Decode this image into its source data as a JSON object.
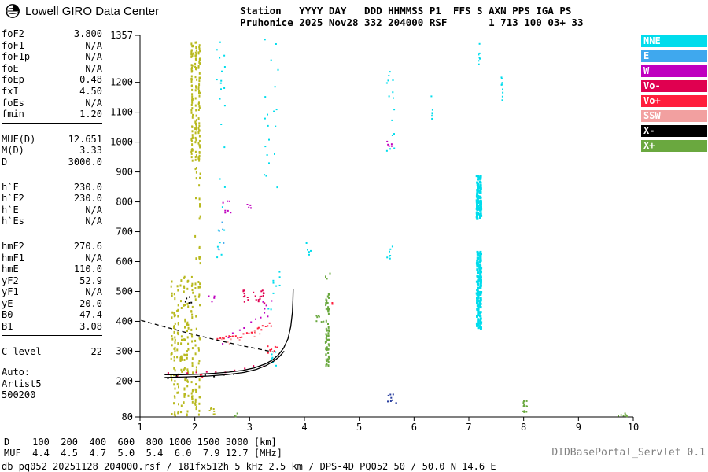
{
  "logo": {
    "text": "Lowell GIRO Data Center"
  },
  "header": {
    "line1": "Station   YYYY DAY   DDD HHMMSS P1  FFS S AXN PPS IGA PS",
    "line2": "Pruhonice 2025 Nov28 332 204000 RSF       1 713 100 03+ 33"
  },
  "params": {
    "groups": [
      {
        "rows": [
          [
            "foF2",
            "3.800"
          ],
          [
            "foF1",
            "N/A"
          ],
          [
            "foF1p",
            "N/A"
          ],
          [
            "foE",
            "N/A"
          ],
          [
            "foEp",
            "0.48"
          ],
          [
            "fxI",
            "4.50"
          ],
          [
            "foEs",
            "N/A"
          ],
          [
            "fmin",
            "1.20"
          ]
        ]
      },
      {
        "rows": [
          [
            "MUF(D)",
            "12.651"
          ],
          [
            "M(D)",
            "3.33"
          ],
          [
            "D",
            "3000.0"
          ]
        ]
      },
      {
        "rows": [
          [
            "h`F",
            "230.0"
          ],
          [
            "h`F2",
            "230.0"
          ],
          [
            "h`E",
            "N/A"
          ],
          [
            "h`Es",
            "N/A"
          ]
        ]
      },
      {
        "rows": [
          [
            "hmF2",
            "270.6"
          ],
          [
            "hmF1",
            "N/A"
          ],
          [
            "hmE",
            "110.0"
          ],
          [
            "yF2",
            "52.9"
          ],
          [
            "yF1",
            "N/A"
          ],
          [
            "yE",
            "20.0"
          ],
          [
            "B0",
            "47.4"
          ],
          [
            "B1",
            "3.08"
          ]
        ]
      },
      {
        "rows": [
          [
            "C-level",
            "22"
          ]
        ]
      }
    ],
    "auto_label": "Auto:",
    "auto_lines": [
      "Artist5",
      "500200"
    ]
  },
  "legend": [
    {
      "label": "NNE",
      "color": "#00dcec"
    },
    {
      "label": "E",
      "color": "#3fa8ee"
    },
    {
      "label": "W",
      "color": "#bf00bf"
    },
    {
      "label": "Vo-",
      "color": "#e00050"
    },
    {
      "label": "Vo+",
      "color": "#ff1e3c"
    },
    {
      "label": "SSW",
      "color": "#f2a0a0"
    },
    {
      "label": "X-",
      "color": "#000000"
    },
    {
      "label": "X+",
      "color": "#6aa83f"
    }
  ],
  "footer": {
    "d_row": "D    100  200  400  600  800 1000 1500 3000 [km]",
    "muf_row": "MUF  4.4  4.5  4.7  5.0  5.4  6.0  7.9 12.7 [MHz]",
    "servlet": "DIDBasePortal_Servlet 0.1",
    "db_info": "db pq052 20251128 204000.rsf / 181fx512h 5 kHz 2.5 km / DPS-4D PQ052 50 / 50.0 N 14.6 E"
  },
  "chart_data": {
    "type": "scatter",
    "xlabel": "[MHz]",
    "ylabel": "[km]",
    "xlim": [
      1,
      10
    ],
    "ylim": [
      80,
      1357
    ],
    "x_ticks": [
      1,
      2,
      3,
      4,
      5,
      6,
      7,
      8,
      9,
      10
    ],
    "y_ticks": [
      1357,
      1200,
      1100,
      1000,
      900,
      800,
      700,
      600,
      500,
      400,
      300,
      200,
      80
    ],
    "grid": false,
    "legend_position": "top-right",
    "colors": {
      "yellow": "#b8b91f",
      "nne": "#00dcec",
      "e": "#3fa8ee",
      "w": "#bf00bf",
      "vom": "#e00050",
      "vop": "#ff1e3c",
      "ssw": "#f2a0a0",
      "xm": "#000000",
      "xp": "#6aa83f",
      "navy": "#2a3f9f"
    },
    "clusters": [
      {
        "c": "yellow",
        "cols": [
          1.58,
          1.63,
          1.69,
          1.75,
          1.81,
          1.87,
          1.95,
          2.02,
          2.08
        ],
        "y": [
          80,
          555
        ],
        "n": 210,
        "h": 3
      },
      {
        "c": "yellow",
        "cols": [
          1.95,
          2.02,
          2.08
        ],
        "y": [
          935,
          1335
        ],
        "n": 150,
        "h": 3
      },
      {
        "c": "yellow",
        "cols": [
          2.02,
          2.09
        ],
        "y": [
          570,
          930
        ],
        "n": 22,
        "h": 3
      },
      {
        "c": "yellow",
        "rect": [
          2.27,
          2.36,
          80,
          112
        ],
        "n": 7
      },
      {
        "c": "nne",
        "cols": [
          7.16,
          7.21
        ],
        "y": [
          372,
          632
        ],
        "n": 140,
        "w": 3,
        "h": 3
      },
      {
        "c": "nne",
        "cols": [
          7.16,
          7.21
        ],
        "y": [
          742,
          888
        ],
        "n": 95,
        "w": 3,
        "h": 3
      },
      {
        "c": "nne",
        "cols": [
          7.19
        ],
        "y": [
          1255,
          1330
        ],
        "n": 7
      },
      {
        "c": "nne",
        "cols": [
          7.61
        ],
        "y": [
          1125,
          1265
        ],
        "n": 9
      },
      {
        "c": "nne",
        "cols": [
          6.33
        ],
        "y": [
          1075,
          1160
        ],
        "n": 7
      },
      {
        "c": "nne",
        "rect": [
          5.5,
          5.65,
          945,
          1265
        ],
        "n": 15
      },
      {
        "c": "nne",
        "rect": [
          5.5,
          5.62,
          585,
          660
        ],
        "n": 7
      },
      {
        "c": "nne",
        "rect": [
          2.4,
          2.56,
          595,
          1345
        ],
        "n": 24
      },
      {
        "c": "nne",
        "rect": [
          3.27,
          3.52,
          775,
          1345
        ],
        "n": 20
      },
      {
        "c": "nne",
        "rect": [
          3.3,
          3.55,
          435,
          570
        ],
        "n": 9
      },
      {
        "c": "nne",
        "rect": [
          3.35,
          3.52,
          238,
          302
        ],
        "n": 7
      },
      {
        "c": "nne",
        "rect": [
          4.0,
          4.12,
          618,
          668
        ],
        "n": 5
      },
      {
        "c": "e",
        "rect": [
          2.43,
          2.53,
          640,
          742
        ],
        "n": 6
      },
      {
        "c": "navy",
        "rect": [
          5.52,
          5.68,
          124,
          156
        ],
        "n": 9
      },
      {
        "c": "w",
        "rect": [
          2.5,
          2.66,
          762,
          806
        ],
        "n": 7
      },
      {
        "c": "w",
        "rect": [
          2.94,
          3.06,
          778,
          802
        ],
        "n": 4
      },
      {
        "c": "w",
        "rect": [
          5.5,
          5.63,
          985,
          1015
        ],
        "n": 5
      },
      {
        "c": "w",
        "rect": [
          2.25,
          2.37,
          462,
          497
        ],
        "n": 4
      },
      {
        "c": "w",
        "rect": [
          3.14,
          3.42,
          428,
          472
        ],
        "n": 6
      },
      {
        "c": "w",
        "diag": [
          2.5,
          332,
          3.32,
          418
        ],
        "n": 9,
        "j": 10
      },
      {
        "c": "vop",
        "diag": [
          2.42,
          338,
          2.9,
          354
        ],
        "n": 13,
        "j": 5
      },
      {
        "c": "vop",
        "diag": [
          2.95,
          358,
          3.4,
          390
        ],
        "n": 13,
        "j": 5
      },
      {
        "c": "vom",
        "rect": [
          2.88,
          3.3,
          460,
          504
        ],
        "n": 24
      },
      {
        "c": "vop",
        "rect": [
          3.33,
          3.52,
          290,
          320
        ],
        "n": 9
      },
      {
        "c": "vom",
        "diag": [
          1.52,
          220,
          3.25,
          246
        ],
        "n": 11,
        "j": 6
      },
      {
        "c": "vop",
        "rect": [
          2.1,
          2.2,
          212,
          230
        ],
        "n": 4
      },
      {
        "c": "vop",
        "rect": [
          4.5,
          4.6,
          455,
          470
        ],
        "n": 2
      },
      {
        "c": "ssw",
        "rect": [
          2.45,
          2.92,
          324,
          347
        ],
        "n": 5
      },
      {
        "c": "ssw",
        "rect": [
          3.0,
          3.22,
          348,
          368
        ],
        "n": 4
      },
      {
        "c": "xp",
        "cols": [
          4.4,
          4.44
        ],
        "y": [
          248,
          494
        ],
        "n": 60,
        "h": 3
      },
      {
        "c": "xp",
        "rect": [
          4.37,
          4.47,
          538,
          566
        ],
        "n": 4
      },
      {
        "c": "xp",
        "rect": [
          4.22,
          4.37,
          388,
          426
        ],
        "n": 7
      },
      {
        "c": "xp",
        "cols": [
          8.0,
          8.05
        ],
        "y": [
          80,
          136
        ],
        "n": 14
      },
      {
        "c": "xp",
        "rect": [
          9.72,
          9.9,
          82,
          104
        ],
        "n": 7
      },
      {
        "c": "xp",
        "rect": [
          2.72,
          2.8,
          80,
          94
        ],
        "n": 3
      },
      {
        "c": "xm",
        "rect": [
          1.8,
          2.0,
          460,
          484
        ],
        "n": 5
      },
      {
        "c": "xm",
        "diag": [
          1.5,
          212,
          2.7,
          222
        ],
        "n": 8,
        "j": 4
      }
    ],
    "traces": [
      {
        "name": "F-trace-asymptote",
        "points": [
          [
            1.45,
            221
          ],
          [
            1.75,
            221
          ],
          [
            2.05,
            223
          ],
          [
            2.35,
            226
          ],
          [
            2.62,
            230
          ],
          [
            2.88,
            236
          ],
          [
            3.08,
            244
          ],
          [
            3.28,
            257
          ],
          [
            3.42,
            271
          ],
          [
            3.52,
            287
          ],
          [
            3.62,
            310
          ],
          [
            3.7,
            342
          ],
          [
            3.75,
            382
          ],
          [
            3.78,
            430
          ],
          [
            3.79,
            472
          ],
          [
            3.795,
            508
          ]
        ]
      },
      {
        "name": "F-trace-lower",
        "points": [
          [
            1.45,
            212
          ],
          [
            1.85,
            214
          ],
          [
            2.25,
            217
          ],
          [
            2.6,
            222
          ],
          [
            2.9,
            229
          ],
          [
            3.12,
            239
          ],
          [
            3.3,
            252
          ],
          [
            3.45,
            268
          ],
          [
            3.55,
            283
          ],
          [
            3.63,
            300
          ]
        ]
      },
      {
        "name": "muf-transmission-curve",
        "dash": [
          5,
          4
        ],
        "points": [
          [
            1.02,
            403
          ],
          [
            1.5,
            379
          ],
          [
            2.0,
            355
          ],
          [
            2.5,
            333
          ],
          [
            2.9,
            317
          ],
          [
            3.2,
            306
          ],
          [
            3.44,
            297
          ]
        ]
      }
    ],
    "muf_table": {
      "d_km": [
        100,
        200,
        400,
        600,
        800,
        1000,
        1500,
        3000
      ],
      "muf_mhz": [
        4.4,
        4.5,
        4.7,
        5.0,
        5.4,
        6.0,
        7.9,
        12.7
      ]
    }
  }
}
